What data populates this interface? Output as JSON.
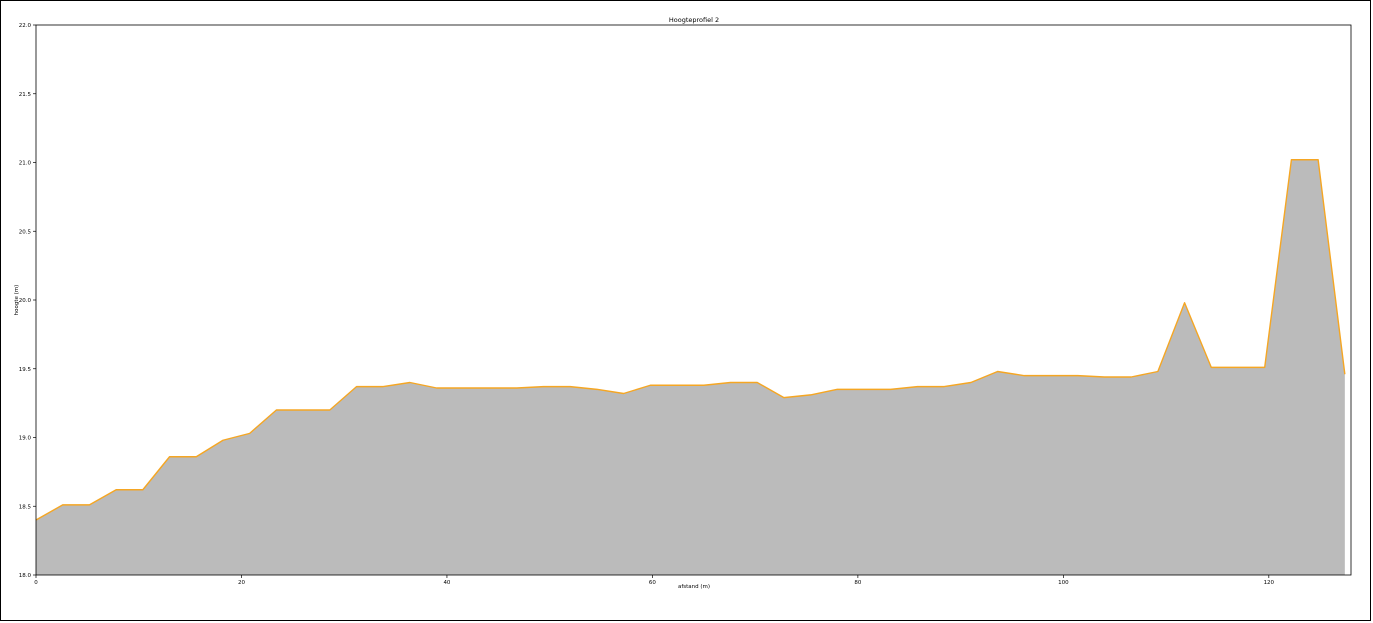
{
  "chart_data": {
    "type": "area",
    "title": "Hoogteprofiel 2",
    "xlabel": "afstand (m)",
    "ylabel": "hoogte (m)",
    "xlim": [
      0,
      128
    ],
    "ylim": [
      18.0,
      22.0
    ],
    "xticks": [
      0,
      20,
      40,
      60,
      80,
      100,
      120
    ],
    "xtick_labels": [
      "0",
      "20",
      "40",
      "60",
      "80",
      "100",
      "120"
    ],
    "yticks": [
      18.0,
      18.5,
      19.0,
      19.5,
      20.0,
      20.5,
      21.0,
      21.5,
      22.0
    ],
    "ytick_labels": [
      "18.0",
      "18.5",
      "19.0",
      "19.5",
      "20.0",
      "20.5",
      "21.0",
      "21.5",
      "22.0"
    ],
    "grid": false,
    "colors": {
      "line": "#f5a623",
      "fill": "#bbbbbb"
    },
    "series": [
      {
        "x": [
          0,
          2.6,
          5.2,
          7.8,
          10.4,
          13.0,
          15.6,
          18.2,
          20.8,
          23.4,
          26.0,
          28.6,
          31.2,
          33.8,
          36.4,
          39.0,
          41.6,
          44.2,
          46.8,
          49.4,
          52.0,
          54.6,
          57.2,
          59.8,
          62.4,
          65.0,
          67.6,
          70.2,
          72.8,
          75.4,
          78.0,
          80.6,
          83.2,
          85.8,
          88.4,
          91.0,
          93.6,
          96.2,
          98.8,
          101.4,
          104.0,
          106.6,
          109.2,
          111.8,
          114.4,
          117.0,
          119.6,
          122.2,
          124.8,
          127.4
        ],
        "y": [
          18.4,
          18.51,
          18.51,
          18.62,
          18.62,
          18.86,
          18.86,
          18.98,
          19.03,
          19.2,
          19.2,
          19.2,
          19.37,
          19.37,
          19.4,
          19.36,
          19.36,
          19.36,
          19.36,
          19.37,
          19.37,
          19.35,
          19.32,
          19.38,
          19.38,
          19.38,
          19.4,
          19.4,
          19.29,
          19.31,
          19.35,
          19.35,
          19.35,
          19.37,
          19.37,
          19.4,
          19.48,
          19.45,
          19.45,
          19.45,
          19.44,
          19.44,
          19.48,
          19.98,
          19.51,
          19.51,
          19.51,
          21.02,
          21.02,
          19.46
        ]
      }
    ]
  }
}
